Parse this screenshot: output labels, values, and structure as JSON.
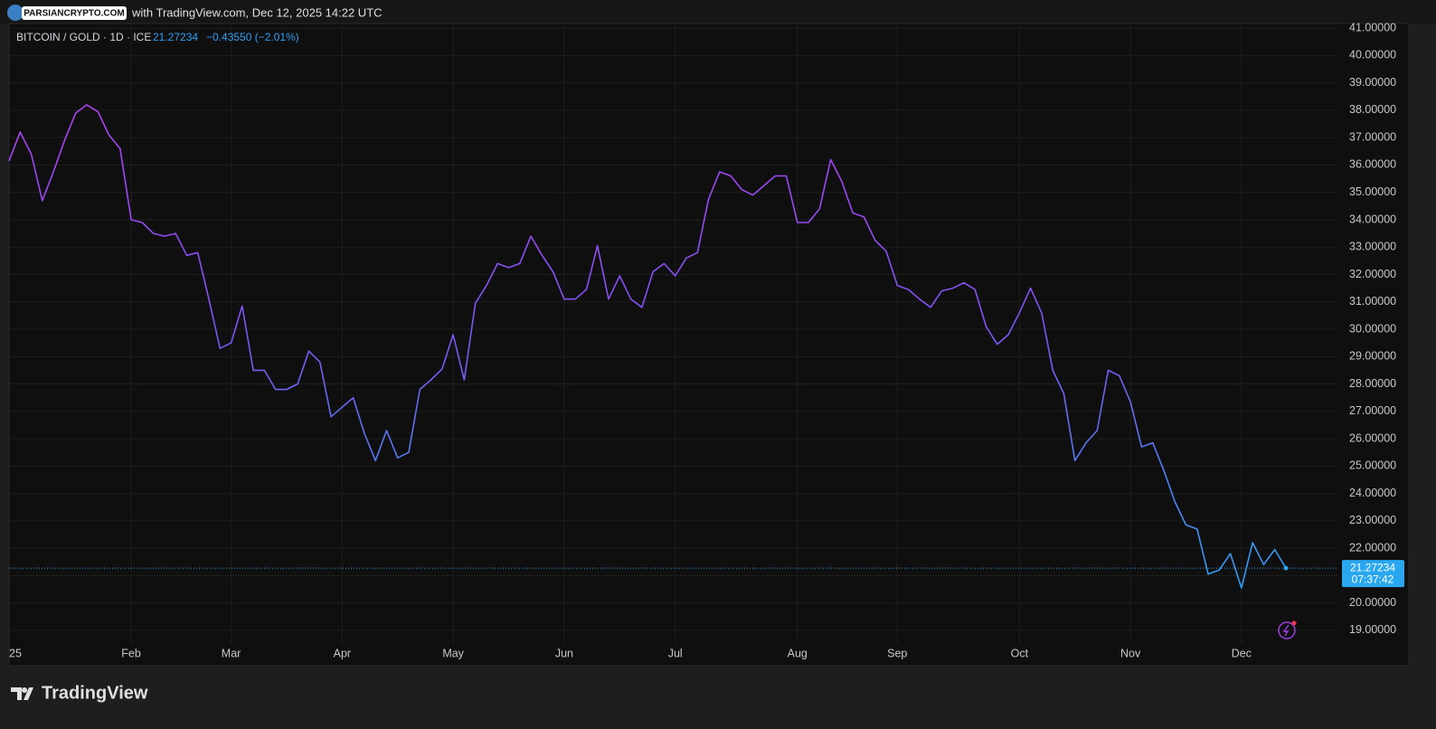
{
  "header": {
    "watermark": "PARSIANCRYPTO.COM",
    "published": "with TradingView.com, Dec 12, 2025 14:22 UTC"
  },
  "chart_data": {
    "type": "line",
    "title": "BITCOIN / GOLD · 1D · ICE",
    "change": "−0.43550 (−2.01%)",
    "countdown": "07:37:42",
    "categories": [
      "25",
      null,
      null,
      null,
      null,
      null,
      null,
      null,
      null,
      null,
      null,
      "Feb",
      null,
      null,
      null,
      null,
      null,
      null,
      null,
      null,
      "Mar",
      null,
      null,
      null,
      null,
      null,
      null,
      null,
      null,
      null,
      "Apr",
      null,
      null,
      null,
      null,
      null,
      null,
      null,
      null,
      null,
      "May",
      null,
      null,
      null,
      null,
      null,
      null,
      null,
      null,
      null,
      "Jun",
      null,
      null,
      null,
      null,
      null,
      null,
      null,
      null,
      null,
      "Jul",
      null,
      null,
      null,
      null,
      null,
      null,
      null,
      null,
      null,
      null,
      "Aug",
      null,
      null,
      null,
      null,
      null,
      null,
      null,
      null,
      "Sep",
      null,
      null,
      null,
      null,
      null,
      null,
      null,
      null,
      null,
      null,
      "Oct",
      null,
      null,
      null,
      null,
      null,
      null,
      null,
      null,
      null,
      "Nov",
      null,
      null,
      null,
      null,
      null,
      null,
      null,
      null,
      null,
      "Dec",
      null,
      null,
      null,
      null
    ],
    "values": [
      36.15,
      37.2,
      36.4,
      34.7,
      35.75,
      36.9,
      37.9,
      38.2,
      37.95,
      37.1,
      36.6,
      34.0,
      33.9,
      33.5,
      33.4,
      33.5,
      32.7,
      32.8,
      31.1,
      29.3,
      29.5,
      30.85,
      28.5,
      28.5,
      27.8,
      27.8,
      28.0,
      29.2,
      28.8,
      26.8,
      27.15,
      27.5,
      26.2,
      25.2,
      26.3,
      25.3,
      25.5,
      27.8,
      28.15,
      28.55,
      29.8,
      28.15,
      30.95,
      31.6,
      32.4,
      32.25,
      32.4,
      33.4,
      32.7,
      32.1,
      31.1,
      31.1,
      31.45,
      33.05,
      31.1,
      31.95,
      31.1,
      30.8,
      32.1,
      32.4,
      31.95,
      32.6,
      32.8,
      34.75,
      35.75,
      35.6,
      35.1,
      34.9,
      35.25,
      35.6,
      35.6,
      33.9,
      33.9,
      34.4,
      36.2,
      35.4,
      34.25,
      34.1,
      33.25,
      32.85,
      31.6,
      31.45,
      31.1,
      30.8,
      31.4,
      31.5,
      31.7,
      31.45,
      30.1,
      29.45,
      29.8,
      30.6,
      31.5,
      30.6,
      28.5,
      27.65,
      25.2,
      25.85,
      26.3,
      28.5,
      28.3,
      27.35,
      25.7,
      25.85,
      24.85,
      23.7,
      22.85,
      22.7,
      21.05,
      21.2,
      21.8,
      20.55,
      22.2,
      21.4,
      21.95,
      21.27234
    ],
    "line_colors": [
      "#b23ff0",
      "#7a55f2",
      "#2f9ff2"
    ],
    "last_color": "#29a8f0",
    "ylim": [
      18.5,
      41.17
    ],
    "yticks": [
      {
        "value": 19,
        "label": "19.00000"
      },
      {
        "value": 20,
        "label": "20.00000"
      },
      {
        "value": 21,
        "label": "21.00000"
      },
      {
        "value": 22,
        "label": "22.00000"
      },
      {
        "value": 23,
        "label": "23.00000"
      },
      {
        "value": 24,
        "label": "24.00000"
      },
      {
        "value": 25,
        "label": "25.00000"
      },
      {
        "value": 26,
        "label": "26.00000"
      },
      {
        "value": 27,
        "label": "27.00000"
      },
      {
        "value": 28,
        "label": "28.00000"
      },
      {
        "value": 29,
        "label": "29.00000"
      },
      {
        "value": 30,
        "label": "30.00000"
      },
      {
        "value": 31,
        "label": "31.00000"
      },
      {
        "value": 32,
        "label": "32.00000"
      },
      {
        "value": 33,
        "label": "33.00000"
      },
      {
        "value": 34,
        "label": "34.00000"
      },
      {
        "value": 35,
        "label": "35.00000"
      },
      {
        "value": 36,
        "label": "36.00000"
      },
      {
        "value": 37,
        "label": "37.00000"
      },
      {
        "value": 38,
        "label": "38.00000"
      },
      {
        "value": 39,
        "label": "39.00000"
      },
      {
        "value": 40,
        "label": "40.00000"
      },
      {
        "value": 41,
        "label": "41.00000"
      }
    ],
    "grid": true
  }
}
